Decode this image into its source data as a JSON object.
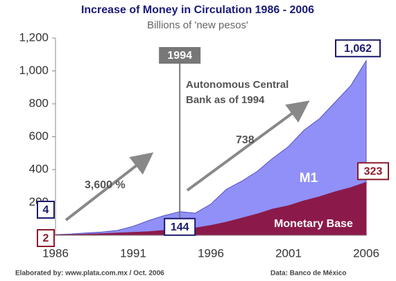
{
  "chart_data": {
    "type": "area",
    "title": "Increase of Money in Circulation 1986 - 2006",
    "subtitle": "Billions of 'new pesos'",
    "x": [
      1986,
      1987,
      1988,
      1989,
      1990,
      1991,
      1992,
      1993,
      1994,
      1995,
      1996,
      1997,
      1998,
      1999,
      2000,
      2001,
      2002,
      2003,
      2004,
      2005,
      2006
    ],
    "series": [
      {
        "name": "M1",
        "color": "#9090f8",
        "label_color": "#1a1a6e",
        "values": [
          4,
          8,
          15,
          20,
          30,
          55,
          90,
          120,
          144,
          135,
          190,
          280,
          330,
          390,
          470,
          540,
          640,
          710,
          810,
          910,
          1062
        ],
        "value_labels": [
          "4",
          null,
          null,
          null,
          null,
          null,
          null,
          null,
          "144",
          null,
          null,
          null,
          null,
          null,
          null,
          null,
          null,
          null,
          null,
          null,
          "1,062"
        ]
      },
      {
        "name": "Monetary Base",
        "color": "#8b1a4a",
        "label_color": "#8b1a2a",
        "values": [
          2,
          4,
          7,
          10,
          14,
          18,
          22,
          30,
          40,
          45,
          60,
          80,
          105,
          130,
          160,
          180,
          210,
          235,
          265,
          290,
          323
        ],
        "value_labels": [
          "2",
          null,
          null,
          null,
          null,
          null,
          null,
          null,
          null,
          null,
          null,
          null,
          null,
          null,
          null,
          null,
          null,
          null,
          null,
          null,
          "323"
        ]
      }
    ],
    "xlim": [
      1986,
      2006
    ],
    "xticks": [
      1986,
      1991,
      1996,
      2001,
      2006
    ],
    "ylim": [
      0,
      1200
    ],
    "yticks": [
      0,
      {
        "value": 200,
        "label": "200"
      },
      {
        "value": 400,
        "label": "400"
      },
      {
        "value": 600,
        "label": "600"
      },
      {
        "value": 800,
        "label": "800"
      },
      {
        "value": 1000,
        "label": "1,000"
      },
      {
        "value": 1200,
        "label": "1,200"
      }
    ],
    "marker_x": 1994,
    "annotations": [
      "Autonomous Central",
      "Bank as of 1994",
      "3,600 %",
      "738"
    ],
    "source_left": "Elaborated by: www.plata.com.mx / Oct. 2006",
    "source_right": "Data: Banco de México"
  }
}
